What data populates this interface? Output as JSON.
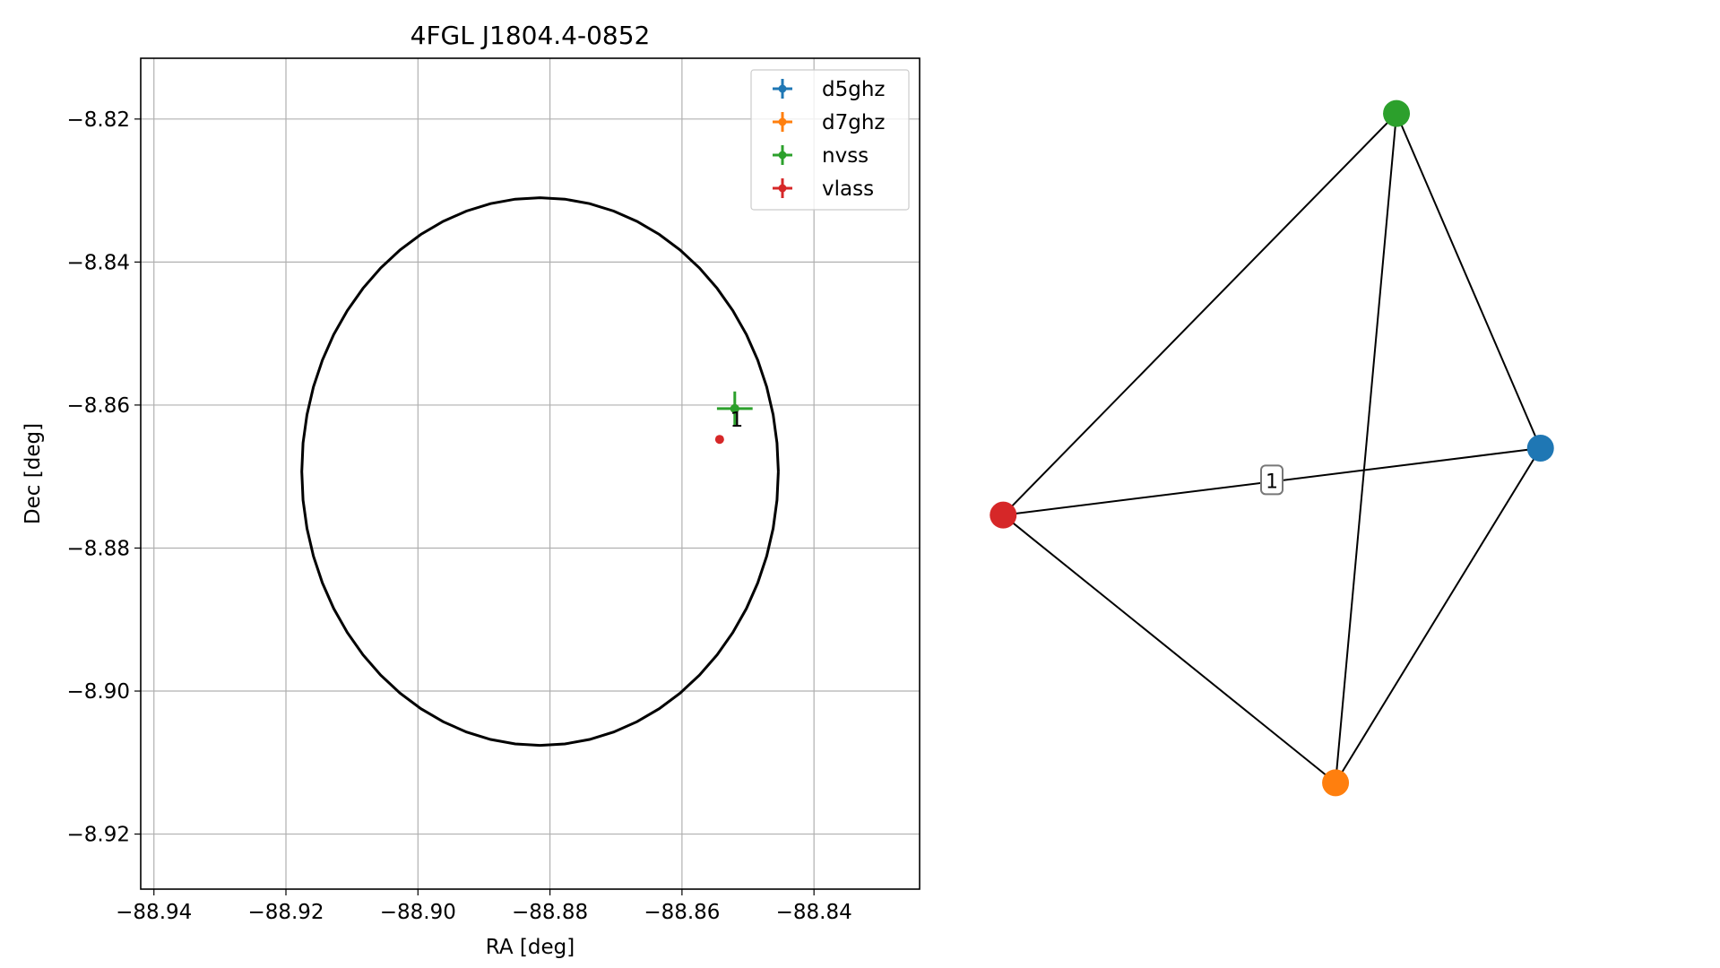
{
  "chart_data": [
    {
      "type": "scatter",
      "title": "4FGL J1804.4-0852",
      "xlabel": "RA [deg]",
      "ylabel": "Dec [deg]",
      "xlim": [
        -88.942,
        -88.824
      ],
      "ylim": [
        -8.9277,
        -8.8115
      ],
      "xticks": [
        -88.94,
        -88.92,
        -88.9,
        -88.88,
        -88.86,
        -88.84
      ],
      "xtick_labels": [
        "−88.94",
        "−88.92",
        "−88.90",
        "−88.88",
        "−88.86",
        "−88.84"
      ],
      "yticks": [
        -8.82,
        -8.84,
        -8.86,
        -8.88,
        -8.9,
        -8.92
      ],
      "ytick_labels": [
        "−8.82",
        "−8.84",
        "−8.86",
        "−8.88",
        "−8.90",
        "−8.92"
      ],
      "grid": true,
      "legend_position": "top-right",
      "ellipse": {
        "center_x": -88.8815,
        "center_y": -8.8693,
        "half_width_x": 0.0361,
        "half_height_y": 0.0383
      },
      "series": [
        {
          "name": "d5ghz",
          "color": "#1f77b4",
          "x": -88.852,
          "y": -8.8605,
          "xerr": 0.0001,
          "yerr": 0.0001
        },
        {
          "name": "d7ghz",
          "color": "#ff7f0e",
          "x": -88.852,
          "y": -8.8605,
          "xerr": 0.0001,
          "yerr": 0.0001
        },
        {
          "name": "nvss",
          "color": "#2ca02c",
          "x": -88.852,
          "y": -8.8605,
          "xerr": 0.0027,
          "yerr": 0.0024
        },
        {
          "name": "vlass",
          "color": "#d62728",
          "x": -88.8543,
          "y": -8.8648,
          "xerr": 0.0002,
          "yerr": 0.0002
        }
      ],
      "annotations": [
        {
          "text": "1",
          "x": -88.8517,
          "y": -8.862
        }
      ]
    },
    {
      "type": "network",
      "nodes": [
        {
          "id": "d5ghz",
          "color": "#1f77b4",
          "x": 0.985,
          "y": 0.5
        },
        {
          "id": "d7ghz",
          "color": "#ff7f0e",
          "x": 0.615,
          "y": 0.025
        },
        {
          "id": "nvss",
          "color": "#2ca02c",
          "x": 0.725,
          "y": 0.975
        },
        {
          "id": "vlass",
          "color": "#d62728",
          "x": 0.015,
          "y": 0.405
        }
      ],
      "edges": [
        {
          "source": "vlass",
          "target": "nvss"
        },
        {
          "source": "vlass",
          "target": "d5ghz",
          "label": "1"
        },
        {
          "source": "vlass",
          "target": "d7ghz"
        },
        {
          "source": "nvss",
          "target": "d5ghz"
        },
        {
          "source": "nvss",
          "target": "d7ghz"
        },
        {
          "source": "d5ghz",
          "target": "d7ghz"
        }
      ]
    }
  ]
}
